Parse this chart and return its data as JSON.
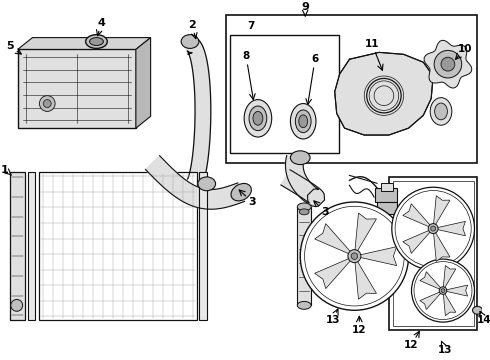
{
  "bg_color": "#ffffff",
  "lc": "#111111",
  "gray_light": "#e0e0e0",
  "gray_mid": "#c0c0c0",
  "gray_dark": "#999999",
  "fig_w": 4.9,
  "fig_h": 3.6,
  "dpi": 100
}
